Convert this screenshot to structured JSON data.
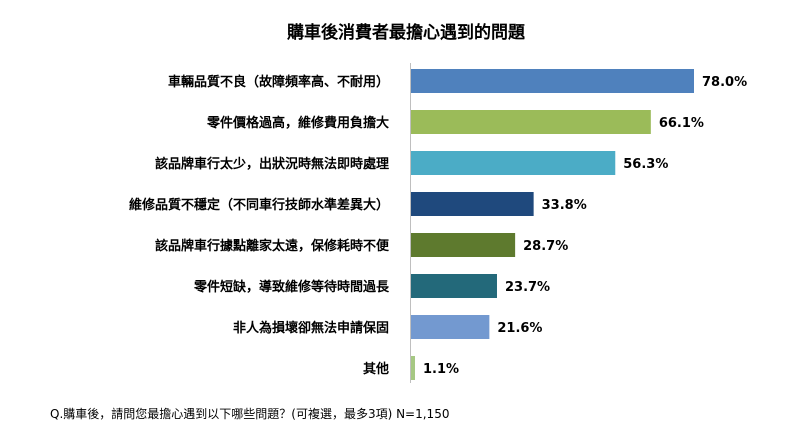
{
  "chart_data": {
    "type": "bar",
    "orientation": "horizontal",
    "title": "購車後消費者最擔心遇到的問題",
    "categories": [
      "車輛品質不良（故障頻率高、不耐用）",
      "零件價格過高，維修費用負擔大",
      "該品牌車行太少，出狀況時無法即時處理",
      "維修品質不穩定（不同車行技師水準差異大）",
      "該品牌車行據點離家太遠，保修耗時不便",
      "零件短缺，導致維修等待時間過長",
      "非人為損壞卻無法申請保固",
      "其他"
    ],
    "values": [
      78.0,
      66.1,
      56.3,
      33.8,
      28.7,
      23.7,
      21.6,
      1.1
    ],
    "value_labels": [
      "78.0%",
      "66.1%",
      "56.3%",
      "33.8%",
      "28.7%",
      "23.7%",
      "21.6%",
      "1.1%"
    ],
    "colors": [
      "#4F81BD",
      "#9BBB59",
      "#4BACC6",
      "#1F497D",
      "#5E7A2E",
      "#23697A",
      "#7399D0",
      "#A6C883"
    ],
    "xlim": [
      0,
      100
    ],
    "grid": false,
    "legend": "none",
    "footnote": "Q.購車後，請問您最擔心遇到以下哪些問題？(可複選，最多3項) N=1,150"
  }
}
